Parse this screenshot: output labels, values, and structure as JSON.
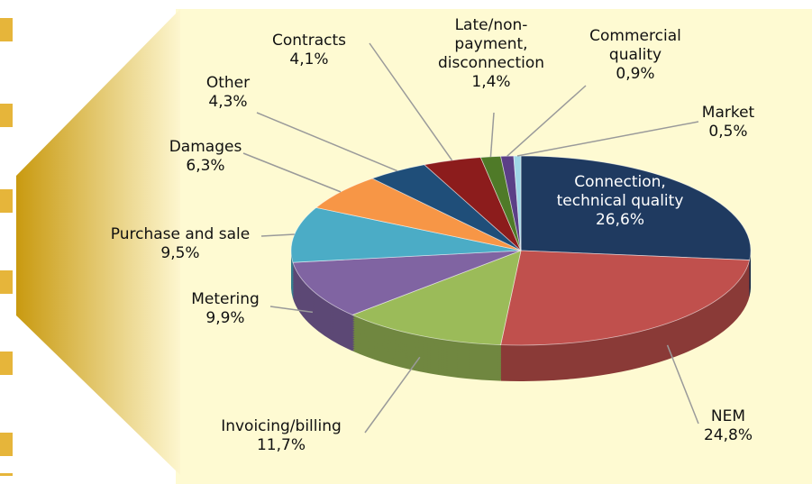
{
  "chart_data": {
    "type": "pie",
    "categories": [
      "Connection, technical quality",
      "NEM",
      "Invoicing/billing",
      "Metering",
      "Purchase and sale",
      "Damages",
      "Other",
      "Contracts",
      "Late/non-payment, disconnection",
      "Commercial quality",
      "Market"
    ],
    "values": [
      26.6,
      24.8,
      11.7,
      9.9,
      9.5,
      6.3,
      4.3,
      4.1,
      1.4,
      0.9,
      0.5
    ],
    "value_labels": [
      "26,6%",
      "24,8%",
      "11,7%",
      "9,9%",
      "9,5%",
      "6,3%",
      "4,3%",
      "4,1%",
      "1,4%",
      "0,9%",
      "0,5%"
    ],
    "colors": [
      "#1f3a60",
      "#c0504d",
      "#9bbb59",
      "#8064a2",
      "#4bacc6",
      "#f79646",
      "#1f4e79",
      "#8c1c1c",
      "#4f7a28",
      "#5b3f87",
      "#9fd6e6"
    ]
  }
}
